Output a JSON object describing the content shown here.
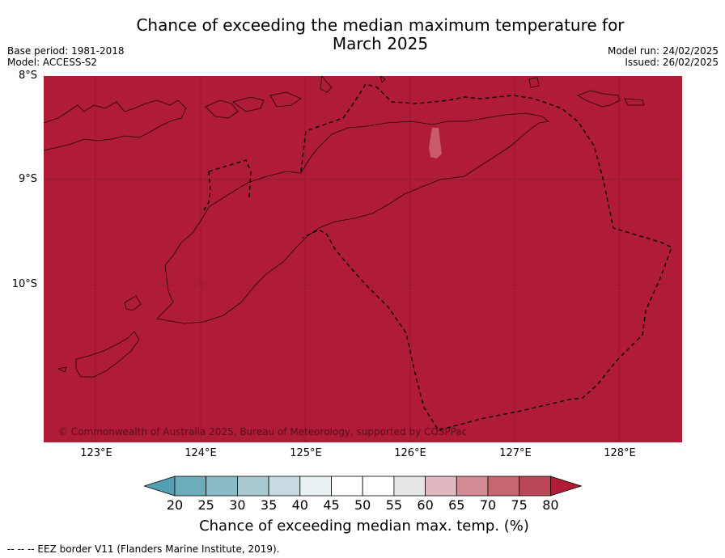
{
  "title": {
    "line1": "Chance of exceeding the median maximum temperature for",
    "line2": "March 2025"
  },
  "meta": {
    "base_period": "Base period: 1981-2018",
    "model": "Model: ACCESS-S2",
    "model_run": "Model run: 24/02/2025",
    "issued": "Issued: 26/02/2025"
  },
  "map": {
    "fill_color": "#b01c37",
    "copyright": "© Commonwealth of Australia 2025, Bureau of Meteorology, supported by COSPPac",
    "lat_labels": [
      "8°S",
      "9°S",
      "10°S"
    ],
    "lon_labels": [
      "123°E",
      "124°E",
      "125°E",
      "126°E",
      "127°E",
      "128°E"
    ]
  },
  "colorbar": {
    "ticks": [
      "20",
      "25",
      "30",
      "35",
      "40",
      "45",
      "50",
      "55",
      "60",
      "65",
      "70",
      "75",
      "80"
    ],
    "colors": [
      "#519fb0",
      "#6cacbb",
      "#89bac5",
      "#a7c9cf",
      "#c6d9de",
      "#e8f0f2",
      "#ffffff",
      "#ffffff",
      "#e6e6e6",
      "#e1b8c0",
      "#d48a94",
      "#c66770",
      "#bb4655",
      "#b01c37"
    ],
    "label": "Chance of exceeding median max. temp. (%)"
  },
  "footer": "--  --  -- EEZ border V11 (Flanders Marine Institute, 2019)."
}
